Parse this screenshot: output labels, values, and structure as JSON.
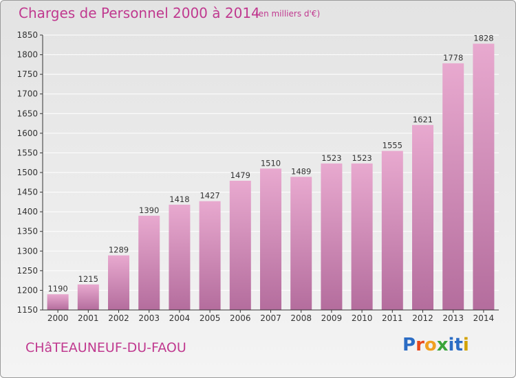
{
  "header": {
    "title": "Charges de Personnel 2000 à 2014",
    "subtitle": "(en milliers d'€)"
  },
  "footer": {
    "town": "CHâTEAUNEUF-DU-FAOU",
    "brand": "Proxiti",
    "brand_colors": [
      "#2b6cc4",
      "#e8481c",
      "#f0a020",
      "#3aa43a",
      "#2b6cc4",
      "#2b6cc4",
      "#d2a200"
    ]
  },
  "colors": {
    "bar_light": "#e8a9cf",
    "bar_dark": "#b46d9d",
    "accent": "#c0398f",
    "grid": "#ffffff",
    "axis": "#333333"
  },
  "chart_data": {
    "type": "bar",
    "categories": [
      "2000",
      "2001",
      "2002",
      "2003",
      "2004",
      "2005",
      "2006",
      "2007",
      "2008",
      "2009",
      "2010",
      "2011",
      "2012",
      "2013",
      "2014"
    ],
    "values": [
      1190,
      1215,
      1289,
      1390,
      1418,
      1427,
      1479,
      1510,
      1489,
      1523,
      1523,
      1555,
      1621,
      1778,
      1828
    ],
    "ylim": [
      1150,
      1850
    ],
    "yticks": [
      1150,
      1200,
      1250,
      1300,
      1350,
      1400,
      1450,
      1500,
      1550,
      1600,
      1650,
      1700,
      1750,
      1800,
      1850
    ],
    "grid": true,
    "title": "Charges de Personnel 2000 à 2014",
    "xlabel": "",
    "ylabel": ""
  }
}
